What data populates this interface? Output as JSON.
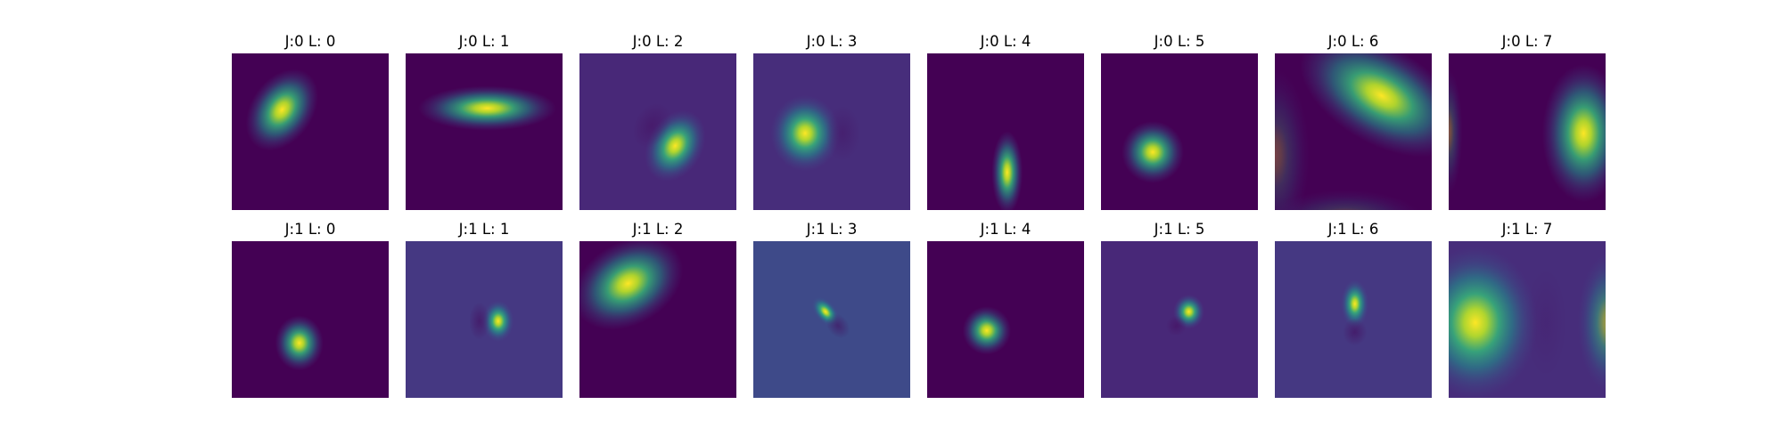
{
  "chart_data": [
    {
      "type": "heatmap",
      "title": "J:0 L: 0",
      "background": "#440154",
      "blobs": [
        {
          "cx": 0.32,
          "cy": 0.36,
          "sx": 0.09,
          "sy": 0.13,
          "rot": 35,
          "amp": 1.0
        }
      ]
    },
    {
      "type": "heatmap",
      "title": "J:0 L: 1",
      "background": "#440154",
      "blobs": [
        {
          "cx": 0.52,
          "cy": 0.35,
          "sx": 0.2,
          "sy": 0.065,
          "rot": 0,
          "amp": 1.0
        }
      ]
    },
    {
      "type": "heatmap",
      "title": "J:0 L: 2",
      "background": "#482878",
      "blobs": [
        {
          "cx": 0.61,
          "cy": 0.59,
          "sx": 0.08,
          "sy": 0.11,
          "rot": 30,
          "amp": 1.0
        },
        {
          "cx": 0.46,
          "cy": 0.46,
          "sx": 0.05,
          "sy": 0.07,
          "rot": 30,
          "amp": -0.35
        }
      ]
    },
    {
      "type": "heatmap",
      "title": "J:0 L: 3",
      "background": "#472d7b",
      "blobs": [
        {
          "cx": 0.33,
          "cy": 0.51,
          "sx": 0.1,
          "sy": 0.11,
          "rot": 0,
          "amp": 1.0
        },
        {
          "cx": 0.57,
          "cy": 0.51,
          "sx": 0.05,
          "sy": 0.08,
          "rot": 0,
          "amp": -0.3
        }
      ]
    },
    {
      "type": "heatmap",
      "title": "J:0 L: 4",
      "background": "#440154",
      "blobs": [
        {
          "cx": 0.51,
          "cy": 0.76,
          "sx": 0.045,
          "sy": 0.12,
          "rot": 0,
          "amp": 1.0
        }
      ]
    },
    {
      "type": "heatmap",
      "title": "J:0 L: 5",
      "background": "#440154",
      "blobs": [
        {
          "cx": 0.33,
          "cy": 0.63,
          "sx": 0.09,
          "sy": 0.09,
          "rot": 0,
          "amp": 1.0
        }
      ]
    },
    {
      "type": "heatmap",
      "title": "J:0 L: 6",
      "background": "#440154",
      "blobs": [
        {
          "cx": 0.68,
          "cy": 0.27,
          "sx": 0.26,
          "sy": 0.14,
          "rot": 30,
          "amp": 1.0
        },
        {
          "cx": 0.0,
          "cy": 0.65,
          "sx": 0.1,
          "sy": 0.25,
          "rot": 0,
          "amp": 0.28
        },
        {
          "cx": 0.45,
          "cy": 1.05,
          "sx": 0.22,
          "sy": 0.08,
          "rot": 0,
          "amp": 0.28
        }
      ]
    },
    {
      "type": "heatmap",
      "title": "J:0 L: 7",
      "background": "#440154",
      "blobs": [
        {
          "cx": 0.86,
          "cy": 0.51,
          "sx": 0.12,
          "sy": 0.2,
          "rot": 0,
          "amp": 1.0
        },
        {
          "cx": 0.0,
          "cy": 0.5,
          "sx": 0.04,
          "sy": 0.18,
          "rot": 0,
          "amp": 0.35
        }
      ]
    },
    {
      "type": "heatmap",
      "title": "J:1 L: 0",
      "background": "#440154",
      "blobs": [
        {
          "cx": 0.43,
          "cy": 0.65,
          "sx": 0.07,
          "sy": 0.08,
          "rot": 0,
          "amp": 1.0
        }
      ]
    },
    {
      "type": "heatmap",
      "title": "J:1 L: 1",
      "background": "#453882",
      "blobs": [
        {
          "cx": 0.59,
          "cy": 0.51,
          "sx": 0.045,
          "sy": 0.06,
          "rot": 0,
          "amp": 1.0
        },
        {
          "cx": 0.47,
          "cy": 0.51,
          "sx": 0.03,
          "sy": 0.055,
          "rot": 0,
          "amp": -0.5
        }
      ]
    },
    {
      "type": "heatmap",
      "title": "J:1 L: 2",
      "background": "#440154",
      "blobs": [
        {
          "cx": 0.31,
          "cy": 0.27,
          "sx": 0.17,
          "sy": 0.12,
          "rot": -30,
          "amp": 1.0
        }
      ]
    },
    {
      "type": "heatmap",
      "title": "J:1 L: 3",
      "background": "#3e4a89",
      "blobs": [
        {
          "cx": 0.46,
          "cy": 0.45,
          "sx": 0.03,
          "sy": 0.05,
          "rot": -40,
          "amp": 1.0
        },
        {
          "cx": 0.54,
          "cy": 0.54,
          "sx": 0.03,
          "sy": 0.04,
          "rot": -40,
          "amp": -0.5
        }
      ]
    },
    {
      "type": "heatmap",
      "title": "J:1 L: 4",
      "background": "#440154",
      "blobs": [
        {
          "cx": 0.38,
          "cy": 0.57,
          "sx": 0.07,
          "sy": 0.07,
          "rot": 0,
          "amp": 1.0
        },
        {
          "cx": 0.45,
          "cy": 0.47,
          "sx": 0.04,
          "sy": 0.04,
          "rot": 0,
          "amp": -0.2
        }
      ]
    },
    {
      "type": "heatmap",
      "title": "J:1 L: 5",
      "background": "#482878",
      "blobs": [
        {
          "cx": 0.56,
          "cy": 0.45,
          "sx": 0.045,
          "sy": 0.05,
          "rot": 0,
          "amp": 1.0
        },
        {
          "cx": 0.48,
          "cy": 0.54,
          "sx": 0.03,
          "sy": 0.03,
          "rot": 0,
          "amp": -0.4
        }
      ]
    },
    {
      "type": "heatmap",
      "title": "J:1 L: 6",
      "background": "#453882",
      "blobs": [
        {
          "cx": 0.51,
          "cy": 0.4,
          "sx": 0.04,
          "sy": 0.07,
          "rot": 0,
          "amp": 1.0
        },
        {
          "cx": 0.51,
          "cy": 0.58,
          "sx": 0.035,
          "sy": 0.04,
          "rot": 0,
          "amp": -0.5
        }
      ]
    },
    {
      "type": "heatmap",
      "title": "J:1 L: 7",
      "background": "#472d7b",
      "blobs": [
        {
          "cx": 0.17,
          "cy": 0.52,
          "sx": 0.18,
          "sy": 0.22,
          "rot": 0,
          "amp": 1.0
        },
        {
          "cx": 1.02,
          "cy": 0.52,
          "sx": 0.09,
          "sy": 0.2,
          "rot": 0,
          "amp": 0.6
        },
        {
          "cx": 0.62,
          "cy": 0.52,
          "sx": 0.06,
          "sy": 0.16,
          "rot": 0,
          "amp": -0.15
        }
      ]
    }
  ]
}
